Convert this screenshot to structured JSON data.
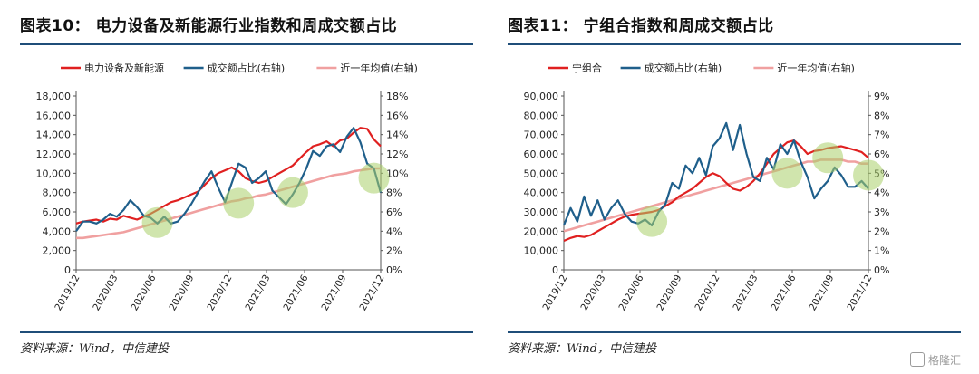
{
  "watermark": "格隆汇",
  "chart_data": [
    {
      "type": "line",
      "title": "图表10：   电力设备及新能源行业指数和周成交额占比",
      "source": "资料来源：Wind，中信建投",
      "x_ticks": [
        "2019/12",
        "2020/03",
        "2020/06",
        "2020/09",
        "2020/12",
        "2021/03",
        "2021/06",
        "2021/09",
        "2021/12"
      ],
      "y_left": {
        "min": 0,
        "max": 18000,
        "step": 2000,
        "ticks": [
          "0",
          "2,000",
          "4,000",
          "6,000",
          "8,000",
          "10,000",
          "12,000",
          "14,000",
          "16,000",
          "18,000"
        ]
      },
      "y_right": {
        "min": 0,
        "max": 18,
        "step": 2,
        "ticks": [
          "0%",
          "2%",
          "4%",
          "6%",
          "8%",
          "10%",
          "12%",
          "14%",
          "16%",
          "18%"
        ]
      },
      "series": [
        {
          "name": "电力设备及新能源",
          "axis": "left",
          "color": "#e02020",
          "values": [
            4800,
            5000,
            5100,
            5200,
            5000,
            5300,
            5200,
            5600,
            5400,
            5200,
            5500,
            5800,
            6200,
            6600,
            7000,
            7200,
            7500,
            7800,
            8100,
            8800,
            9500,
            10000,
            10300,
            10600,
            10200,
            9500,
            9200,
            9000,
            9200,
            9600,
            10000,
            10400,
            10800,
            11500,
            12200,
            12800,
            13000,
            13300,
            12800,
            13400,
            13600,
            14200,
            14700,
            14600,
            13500,
            12800
          ]
        },
        {
          "name": "成交额占比(右轴)",
          "axis": "right",
          "color": "#1f5f8b",
          "values": [
            4.0,
            5.0,
            5.0,
            4.8,
            5.2,
            5.8,
            5.5,
            6.2,
            7.2,
            6.5,
            5.6,
            5.4,
            4.8,
            5.5,
            4.8,
            5.0,
            5.8,
            6.8,
            8.0,
            9.2,
            10.2,
            8.5,
            7.0,
            9.0,
            11.0,
            10.6,
            9.0,
            9.5,
            10.2,
            8.2,
            7.5,
            6.8,
            7.8,
            9.0,
            10.5,
            12.3,
            11.8,
            12.8,
            13.0,
            12.2,
            13.8,
            14.7,
            13.2,
            11.0,
            10.5,
            8.0
          ]
        },
        {
          "name": "近一年均值(右轴)",
          "axis": "right",
          "color": "#f0a0a0",
          "values": [
            3.3,
            3.3,
            3.4,
            3.5,
            3.6,
            3.7,
            3.8,
            3.9,
            4.1,
            4.3,
            4.5,
            4.7,
            4.9,
            5.1,
            5.3,
            5.5,
            5.7,
            5.9,
            6.1,
            6.3,
            6.5,
            6.7,
            6.9,
            7.1,
            7.2,
            7.4,
            7.5,
            7.7,
            7.8,
            8.0,
            8.2,
            8.4,
            8.6,
            8.8,
            9.0,
            9.2,
            9.4,
            9.6,
            9.8,
            9.9,
            10.0,
            10.2,
            10.3,
            10.4,
            10.5,
            10.5
          ]
        }
      ],
      "highlights": [
        {
          "x_index": 12,
          "y": 4.9
        },
        {
          "x_index": 24,
          "y": 6.9
        },
        {
          "x_index": 32,
          "y": 8.0
        },
        {
          "x_index": 44,
          "y": 9.5
        }
      ]
    },
    {
      "type": "line",
      "title": "图表11：   宁组合指数和周成交额占比",
      "source": "资料来源：Wind，中信建投",
      "x_ticks": [
        "2019/12",
        "2020/03",
        "2020/06",
        "2020/09",
        "2020/12",
        "2021/03",
        "2021/06",
        "2021/09",
        "2021/12"
      ],
      "y_left": {
        "min": 0,
        "max": 90000,
        "step": 10000,
        "ticks": [
          "0",
          "10,000",
          "20,000",
          "30,000",
          "40,000",
          "50,000",
          "60,000",
          "70,000",
          "80,000",
          "90,000"
        ]
      },
      "y_right": {
        "min": 0,
        "max": 9,
        "step": 1,
        "ticks": [
          "0%",
          "1%",
          "2%",
          "3%",
          "4%",
          "5%",
          "6%",
          "7%",
          "8%",
          "9%"
        ]
      },
      "series": [
        {
          "name": "宁组合",
          "axis": "left",
          "color": "#e02020",
          "values": [
            15000,
            16500,
            17500,
            17000,
            18000,
            20000,
            22000,
            24000,
            26000,
            27500,
            28500,
            29000,
            29500,
            30000,
            31000,
            33000,
            35000,
            38000,
            40000,
            42000,
            45000,
            48000,
            50000,
            48500,
            45000,
            42000,
            41000,
            43000,
            46000,
            50000,
            55000,
            60000,
            63000,
            66000,
            67000,
            64000,
            60000,
            61500,
            62000,
            63000,
            63500,
            64000,
            63000,
            62000,
            61000,
            58000
          ]
        },
        {
          "name": "成交额占比(右轴)",
          "axis": "right",
          "color": "#1f5f8b",
          "values": [
            2.3,
            3.2,
            2.5,
            3.8,
            2.8,
            3.6,
            2.6,
            3.2,
            3.6,
            2.9,
            2.5,
            2.4,
            2.6,
            2.3,
            3.0,
            3.4,
            4.5,
            4.2,
            5.4,
            5.0,
            5.8,
            4.9,
            6.4,
            6.8,
            7.6,
            6.2,
            7.5,
            6.0,
            4.8,
            4.6,
            5.8,
            5.2,
            6.5,
            6.0,
            6.7,
            5.6,
            4.8,
            3.7,
            4.2,
            4.6,
            5.3,
            4.9,
            4.3,
            4.3,
            4.6,
            4.2
          ]
        },
        {
          "name": "近一年均值(右轴)",
          "axis": "right",
          "color": "#f0a0a0",
          "values": [
            2.0,
            2.1,
            2.2,
            2.3,
            2.4,
            2.5,
            2.6,
            2.7,
            2.8,
            2.9,
            3.0,
            3.1,
            3.2,
            3.3,
            3.4,
            3.5,
            3.6,
            3.7,
            3.8,
            3.9,
            4.0,
            4.1,
            4.2,
            4.3,
            4.4,
            4.5,
            4.6,
            4.7,
            4.8,
            4.9,
            5.0,
            5.1,
            5.2,
            5.3,
            5.4,
            5.5,
            5.6,
            5.6,
            5.7,
            5.7,
            5.7,
            5.7,
            5.6,
            5.6,
            5.5,
            5.5
          ]
        }
      ],
      "highlights": [
        {
          "x_index": 13,
          "y": 2.5
        },
        {
          "x_index": 33,
          "y": 5.0
        },
        {
          "x_index": 39,
          "y": 5.8
        },
        {
          "x_index": 45,
          "y": 4.9
        }
      ]
    }
  ]
}
